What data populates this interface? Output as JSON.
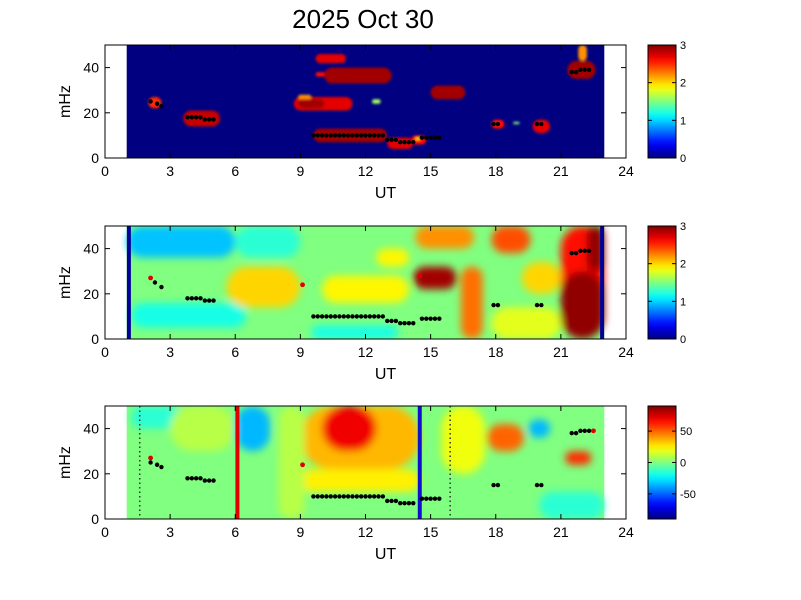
{
  "figure_title": "2025 Oct 30",
  "chart_data": [
    {
      "type": "heatmap",
      "panel": "top",
      "xlabel": "UT",
      "ylabel": "mHz",
      "xlim": [
        0,
        24
      ],
      "ylim": [
        0,
        50
      ],
      "xticks": [
        0,
        3,
        6,
        9,
        12,
        15,
        18,
        21,
        24
      ],
      "yticks": [
        0,
        20,
        40
      ],
      "colorbar": {
        "range": [
          0,
          3
        ],
        "ticks": [
          0,
          1,
          2,
          3
        ],
        "colormap": "jet"
      },
      "data_coverage_ut": [
        1.0,
        23.0
      ],
      "background_value": 0,
      "blobs": [
        {
          "x": [
            2.0,
            2.6
          ],
          "y": [
            22,
            27
          ],
          "v": 2.5
        },
        {
          "x": [
            3.6,
            5.3
          ],
          "y": [
            14,
            21
          ],
          "v": 2.8
        },
        {
          "x": [
            8.7,
            11.4
          ],
          "y": [
            21,
            27
          ],
          "v": 2.7
        },
        {
          "x": [
            8.9,
            10.1
          ],
          "y": [
            22,
            26
          ],
          "v": 2.9
        },
        {
          "x": [
            8.9,
            9.5
          ],
          "y": [
            26,
            28
          ],
          "v": 2.2
        },
        {
          "x": [
            9.7,
            11.1
          ],
          "y": [
            42,
            46
          ],
          "v": 2.7
        },
        {
          "x": [
            9.7,
            10.5
          ],
          "y": [
            36,
            38
          ],
          "v": 2.6
        },
        {
          "x": [
            10.1,
            13.2
          ],
          "y": [
            33,
            40
          ],
          "v": 2.9
        },
        {
          "x": [
            9.6,
            13.0
          ],
          "y": [
            7,
            13
          ],
          "v": 2.9
        },
        {
          "x": [
            13.0,
            14.2
          ],
          "y": [
            4,
            9
          ],
          "v": 2.7
        },
        {
          "x": [
            14.1,
            14.8
          ],
          "y": [
            6,
            10
          ],
          "v": 2.6
        },
        {
          "x": [
            15.0,
            16.6
          ],
          "y": [
            26,
            32
          ],
          "v": 2.9
        },
        {
          "x": [
            17.8,
            18.4
          ],
          "y": [
            13,
            17
          ],
          "v": 2.6
        },
        {
          "x": [
            19.7,
            20.5
          ],
          "y": [
            11,
            17
          ],
          "v": 2.7
        },
        {
          "x": [
            21.3,
            22.6
          ],
          "y": [
            35,
            43
          ],
          "v": 2.9
        },
        {
          "x": [
            21.8,
            22.2
          ],
          "y": [
            43,
            50
          ],
          "v": 2.2
        },
        {
          "x": [
            14.3,
            14.5
          ],
          "y": [
            8,
            9
          ],
          "v": 1.8
        },
        {
          "x": [
            18.8,
            19.1
          ],
          "y": [
            15,
            16
          ],
          "v": 1.5
        },
        {
          "x": [
            12.3,
            12.7
          ],
          "y": [
            24,
            26
          ],
          "v": 1.6
        }
      ],
      "ridge_points": [
        [
          2.1,
          25
        ],
        [
          2.4,
          24
        ],
        [
          2.6,
          23
        ],
        [
          3.8,
          18
        ],
        [
          4.0,
          18
        ],
        [
          4.2,
          18
        ],
        [
          4.4,
          18
        ],
        [
          4.6,
          17
        ],
        [
          4.8,
          17
        ],
        [
          5.0,
          17
        ],
        [
          9.6,
          10
        ],
        [
          9.8,
          10
        ],
        [
          10.0,
          10
        ],
        [
          10.2,
          10
        ],
        [
          10.4,
          10
        ],
        [
          10.6,
          10
        ],
        [
          10.8,
          10
        ],
        [
          11.0,
          10
        ],
        [
          11.2,
          10
        ],
        [
          11.4,
          10
        ],
        [
          11.6,
          10
        ],
        [
          11.8,
          10
        ],
        [
          12.0,
          10
        ],
        [
          12.2,
          10
        ],
        [
          12.4,
          10
        ],
        [
          12.6,
          10
        ],
        [
          12.8,
          10
        ],
        [
          13.0,
          8
        ],
        [
          13.2,
          8
        ],
        [
          13.4,
          8
        ],
        [
          13.6,
          7
        ],
        [
          13.8,
          7
        ],
        [
          14.0,
          7
        ],
        [
          14.2,
          7
        ],
        [
          14.6,
          9
        ],
        [
          14.8,
          9
        ],
        [
          15.0,
          9
        ],
        [
          15.2,
          9
        ],
        [
          15.4,
          9
        ],
        [
          17.9,
          15
        ],
        [
          18.1,
          15
        ],
        [
          19.9,
          15
        ],
        [
          20.1,
          15
        ],
        [
          21.5,
          38
        ],
        [
          21.7,
          38
        ],
        [
          21.9,
          39
        ],
        [
          22.1,
          39
        ],
        [
          22.3,
          39
        ]
      ],
      "red_points": []
    },
    {
      "type": "heatmap",
      "panel": "middle",
      "xlabel": "UT",
      "ylabel": "mHz",
      "xlim": [
        0,
        24
      ],
      "ylim": [
        0,
        50
      ],
      "xticks": [
        0,
        3,
        6,
        9,
        12,
        15,
        18,
        21,
        24
      ],
      "yticks": [
        0,
        20,
        40
      ],
      "colorbar": {
        "range": [
          0,
          3
        ],
        "ticks": [
          0,
          1,
          2,
          3
        ],
        "colormap": "jet"
      },
      "data_coverage_ut": [
        1.0,
        23.0
      ],
      "background_value": 1.5,
      "blobs": [
        {
          "x": [
            1.0,
            6.0
          ],
          "y": [
            36,
            50
          ],
          "v": 0.95
        },
        {
          "x": [
            6.0,
            9.0
          ],
          "y": [
            36,
            50
          ],
          "v": 1.25
        },
        {
          "x": [
            1.2,
            6.5
          ],
          "y": [
            5,
            16
          ],
          "v": 1.2
        },
        {
          "x": [
            9.5,
            13.5
          ],
          "y": [
            0,
            6
          ],
          "v": 1.2
        },
        {
          "x": [
            6.6,
            8.1
          ],
          "y": [
            16,
            28
          ],
          "v": 2.7
        },
        {
          "x": [
            5.6,
            9.0
          ],
          "y": [
            14,
            32
          ],
          "v": 2.0
        },
        {
          "x": [
            14.8,
            16.2
          ],
          "y": [
            42,
            50
          ],
          "v": 2.8
        },
        {
          "x": [
            14.3,
            17.0
          ],
          "y": [
            40,
            50
          ],
          "v": 2.2
        },
        {
          "x": [
            14.2,
            16.2
          ],
          "y": [
            22,
            32
          ],
          "v": 2.9
        },
        {
          "x": [
            16.4,
            17.4
          ],
          "y": [
            0,
            32
          ],
          "v": 2.3
        },
        {
          "x": [
            17.8,
            19.6
          ],
          "y": [
            38,
            50
          ],
          "v": 2.4
        },
        {
          "x": [
            17.8,
            21.0
          ],
          "y": [
            0,
            14
          ],
          "v": 1.8
        },
        {
          "x": [
            19.2,
            21.0
          ],
          "y": [
            20,
            34
          ],
          "v": 2.0
        },
        {
          "x": [
            21.0,
            23.0
          ],
          "y": [
            0,
            50
          ],
          "v": 2.6
        },
        {
          "x": [
            21.0,
            23.0
          ],
          "y": [
            0,
            30
          ],
          "v": 2.95
        },
        {
          "x": [
            22.2,
            23.0
          ],
          "y": [
            30,
            50
          ],
          "v": 2.95
        },
        {
          "x": [
            10.0,
            14.0
          ],
          "y": [
            16,
            28
          ],
          "v": 1.9
        },
        {
          "x": [
            12.5,
            14.0
          ],
          "y": [
            32,
            40
          ],
          "v": 1.9
        }
      ],
      "ridge_points": [
        [
          2.3,
          25
        ],
        [
          2.6,
          23
        ],
        [
          3.8,
          18
        ],
        [
          4.0,
          18
        ],
        [
          4.2,
          18
        ],
        [
          4.4,
          18
        ],
        [
          4.6,
          17
        ],
        [
          4.8,
          17
        ],
        [
          5.0,
          17
        ],
        [
          9.6,
          10
        ],
        [
          9.8,
          10
        ],
        [
          10.0,
          10
        ],
        [
          10.2,
          10
        ],
        [
          10.4,
          10
        ],
        [
          10.6,
          10
        ],
        [
          10.8,
          10
        ],
        [
          11.0,
          10
        ],
        [
          11.2,
          10
        ],
        [
          11.4,
          10
        ],
        [
          11.6,
          10
        ],
        [
          11.8,
          10
        ],
        [
          12.0,
          10
        ],
        [
          12.2,
          10
        ],
        [
          12.4,
          10
        ],
        [
          12.6,
          10
        ],
        [
          12.8,
          10
        ],
        [
          13.0,
          8
        ],
        [
          13.2,
          8
        ],
        [
          13.4,
          8
        ],
        [
          13.6,
          7
        ],
        [
          13.8,
          7
        ],
        [
          14.0,
          7
        ],
        [
          14.2,
          7
        ],
        [
          14.6,
          9
        ],
        [
          14.8,
          9
        ],
        [
          15.0,
          9
        ],
        [
          15.2,
          9
        ],
        [
          15.4,
          9
        ],
        [
          17.9,
          15
        ],
        [
          18.1,
          15
        ],
        [
          19.9,
          15
        ],
        [
          20.1,
          15
        ],
        [
          21.5,
          38
        ],
        [
          21.7,
          38
        ],
        [
          21.9,
          39
        ],
        [
          22.1,
          39
        ],
        [
          22.3,
          39
        ]
      ],
      "red_points": [
        [
          2.1,
          27
        ],
        [
          9.1,
          24
        ],
        [
          14.5,
          28
        ]
      ],
      "vertical_lines": [
        {
          "ut": 1.1,
          "color": "#00009a"
        },
        {
          "ut": 22.9,
          "color": "#00009a"
        }
      ]
    },
    {
      "type": "heatmap",
      "panel": "bottom",
      "xlabel": "UT",
      "ylabel": "mHz",
      "xlim": [
        0,
        24
      ],
      "ylim": [
        0,
        50
      ],
      "xticks": [
        0,
        3,
        6,
        9,
        12,
        15,
        18,
        21,
        24
      ],
      "yticks": [
        0,
        20,
        40
      ],
      "colorbar": {
        "range": [
          -90,
          90
        ],
        "ticks": [
          -50,
          0,
          50
        ],
        "colormap": "jet"
      },
      "data_coverage_ut": [
        1.0,
        23.0
      ],
      "background_value": 0,
      "blobs": [
        {
          "x": [
            6.0,
            7.6
          ],
          "y": [
            30,
            50
          ],
          "v": -35
        },
        {
          "x": [
            1.2,
            3.5
          ],
          "y": [
            40,
            50
          ],
          "v": -15
        },
        {
          "x": [
            3.0,
            6.0
          ],
          "y": [
            30,
            50
          ],
          "v": 10
        },
        {
          "x": [
            9.0,
            14.5
          ],
          "y": [
            22,
            50
          ],
          "v": 35
        },
        {
          "x": [
            10.0,
            12.5
          ],
          "y": [
            30,
            50
          ],
          "v": 70
        },
        {
          "x": [
            9.0,
            14.5
          ],
          "y": [
            12,
            22
          ],
          "v": 25
        },
        {
          "x": [
            8.0,
            9.2
          ],
          "y": [
            0,
            50
          ],
          "v": 10
        },
        {
          "x": [
            17.6,
            19.3
          ],
          "y": [
            30,
            42
          ],
          "v": 50
        },
        {
          "x": [
            19.5,
            20.5
          ],
          "y": [
            36,
            44
          ],
          "v": -35
        },
        {
          "x": [
            21.2,
            22.4
          ],
          "y": [
            24,
            30
          ],
          "v": 60
        },
        {
          "x": [
            15.5,
            17.5
          ],
          "y": [
            20,
            50
          ],
          "v": 20
        },
        {
          "x": [
            20.0,
            23.0
          ],
          "y": [
            0,
            12
          ],
          "v": -15
        }
      ],
      "ridge_points": [
        [
          2.1,
          25
        ],
        [
          2.4,
          24
        ],
        [
          2.6,
          23
        ],
        [
          3.8,
          18
        ],
        [
          4.0,
          18
        ],
        [
          4.2,
          18
        ],
        [
          4.4,
          18
        ],
        [
          4.6,
          17
        ],
        [
          4.8,
          17
        ],
        [
          5.0,
          17
        ],
        [
          9.6,
          10
        ],
        [
          9.8,
          10
        ],
        [
          10.0,
          10
        ],
        [
          10.2,
          10
        ],
        [
          10.4,
          10
        ],
        [
          10.6,
          10
        ],
        [
          10.8,
          10
        ],
        [
          11.0,
          10
        ],
        [
          11.2,
          10
        ],
        [
          11.4,
          10
        ],
        [
          11.6,
          10
        ],
        [
          11.8,
          10
        ],
        [
          12.0,
          10
        ],
        [
          12.2,
          10
        ],
        [
          12.4,
          10
        ],
        [
          12.6,
          10
        ],
        [
          12.8,
          10
        ],
        [
          13.0,
          8
        ],
        [
          13.2,
          8
        ],
        [
          13.4,
          8
        ],
        [
          13.6,
          7
        ],
        [
          13.8,
          7
        ],
        [
          14.0,
          7
        ],
        [
          14.2,
          7
        ],
        [
          14.6,
          9
        ],
        [
          14.8,
          9
        ],
        [
          15.0,
          9
        ],
        [
          15.2,
          9
        ],
        [
          15.4,
          9
        ],
        [
          17.9,
          15
        ],
        [
          18.1,
          15
        ],
        [
          19.9,
          15
        ],
        [
          20.1,
          15
        ],
        [
          21.5,
          38
        ],
        [
          21.7,
          38
        ],
        [
          21.9,
          39
        ],
        [
          22.1,
          39
        ],
        [
          22.3,
          39
        ]
      ],
      "red_points": [
        [
          2.1,
          27
        ],
        [
          9.1,
          24
        ],
        [
          22.5,
          39
        ]
      ],
      "vertical_lines": [
        {
          "ut": 6.1,
          "color": "#e00000"
        },
        {
          "ut": 14.5,
          "color": "#1010d0"
        }
      ],
      "dotted_lines": [
        {
          "ut": 1.6
        },
        {
          "ut": 15.9
        }
      ]
    }
  ]
}
